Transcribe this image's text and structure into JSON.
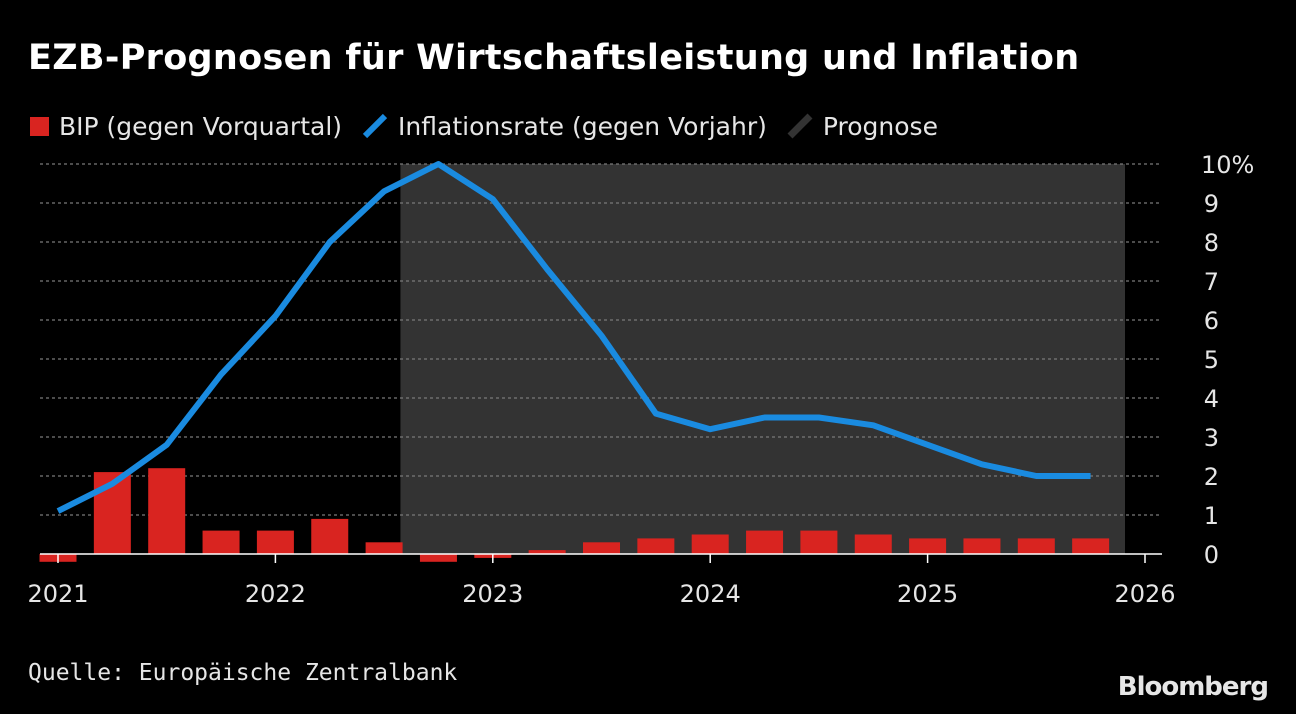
{
  "title": "EZB-Prognosen für Wirtschaftsleistung und Inflation",
  "legend": {
    "gdp": "BIP (gegen Vorquartal)",
    "inflation": "Inflationsrate (gegen Vorjahr)",
    "forecast": "Prognose"
  },
  "source": "Quelle: Europäische Zentralbank",
  "brand": "Bloomberg",
  "colors": {
    "background": "#000000",
    "gdp": "#d92420",
    "inflation": "#1a8be0",
    "forecast_area": "#333333",
    "grid": "#7a7a7a",
    "text": "#e6e6e6"
  },
  "chart_data": {
    "type": "bar",
    "x_unit": "year",
    "xlim": [
      2021.0,
      2026.0
    ],
    "ylim": [
      0,
      10
    ],
    "y_ticks": [
      0,
      1,
      2,
      3,
      4,
      5,
      6,
      7,
      8,
      9,
      10
    ],
    "y_tick_labels": [
      "0",
      "1",
      "2",
      "3",
      "4",
      "5",
      "6",
      "7",
      "8",
      "9",
      "10%"
    ],
    "x_ticks": [
      2021,
      2022,
      2023,
      2024,
      2025,
      2026
    ],
    "x_tick_labels": [
      "2021",
      "2022",
      "2023",
      "2024",
      "2025",
      "2026"
    ],
    "grid": "horizontal dotted",
    "y_axis_position": "right",
    "forecast_range": [
      2022.75,
      2026.0
    ],
    "series": [
      {
        "name": "BIP (gegen Vorquartal)",
        "type": "bar",
        "x": [
          2021.0,
          2021.25,
          2021.5,
          2021.75,
          2022.0,
          2022.25,
          2022.5,
          2022.75,
          2023.0,
          2023.25,
          2023.5,
          2023.75,
          2024.0,
          2024.25,
          2024.5,
          2024.75,
          2025.0,
          2025.25,
          2025.5,
          2025.75
        ],
        "values": [
          -0.2,
          2.1,
          2.2,
          0.6,
          0.6,
          0.9,
          0.3,
          -0.2,
          -0.1,
          0.1,
          0.3,
          0.4,
          0.5,
          0.6,
          0.6,
          0.5,
          0.4,
          0.4,
          0.4,
          0.4
        ]
      },
      {
        "name": "Inflationsrate (gegen Vorjahr)",
        "type": "line",
        "x": [
          2021.0,
          2021.25,
          2021.5,
          2021.75,
          2022.0,
          2022.25,
          2022.5,
          2022.75,
          2023.0,
          2023.25,
          2023.5,
          2023.75,
          2024.0,
          2024.25,
          2024.5,
          2024.75,
          2025.0,
          2025.25,
          2025.5,
          2025.75
        ],
        "values": [
          1.1,
          1.8,
          2.8,
          4.6,
          6.1,
          8.0,
          9.3,
          10.0,
          9.1,
          7.3,
          5.6,
          3.6,
          3.2,
          3.5,
          3.5,
          3.3,
          2.8,
          2.3,
          2.0,
          2.0
        ]
      }
    ]
  }
}
